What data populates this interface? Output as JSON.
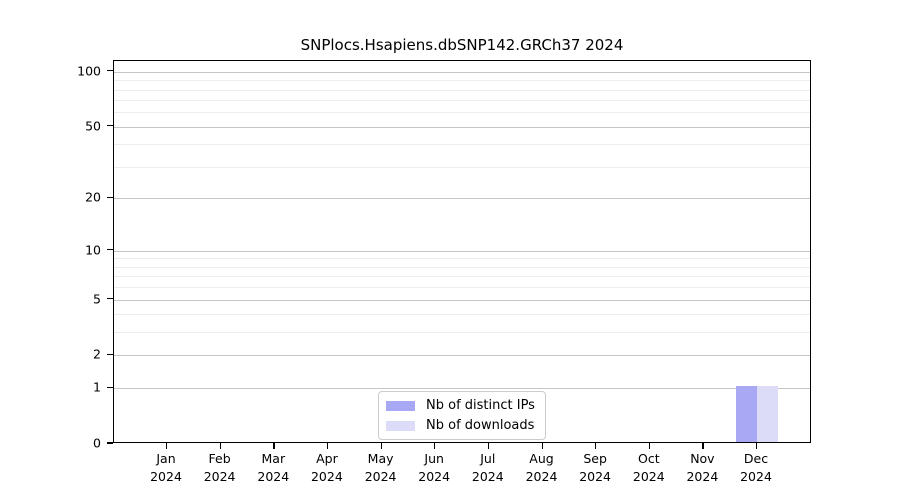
{
  "figure": {
    "background": "#ffffff"
  },
  "chart_data": {
    "type": "bar",
    "title": "SNPlocs.Hsapiens.dbSNP142.GRCh37 2024",
    "x_tick_months": [
      "Jan",
      "Feb",
      "Mar",
      "Apr",
      "May",
      "Jun",
      "Jul",
      "Aug",
      "Sep",
      "Oct",
      "Nov",
      "Dec"
    ],
    "x_tick_year": "2024",
    "series": [
      {
        "name": "Nb of distinct IPs",
        "color": "#a8a8f5",
        "values": [
          0,
          0,
          0,
          0,
          0,
          0,
          0,
          0,
          0,
          0,
          0,
          1
        ]
      },
      {
        "name": "Nb of downloads",
        "color": "#dcdcf8",
        "values": [
          0,
          0,
          0,
          0,
          0,
          0,
          0,
          0,
          0,
          0,
          0,
          1
        ]
      }
    ],
    "y_scale": "log1p",
    "y_major_ticks": [
      0,
      1,
      2,
      5,
      10,
      20,
      50,
      100
    ],
    "y_minor_ticks": [
      3,
      4,
      6,
      7,
      8,
      9,
      30,
      40,
      60,
      70,
      80,
      90
    ],
    "ylim": [
      0,
      115
    ],
    "grid": "horizontal-only",
    "legend_position": "bottom-center",
    "colors": {
      "major_grid": "#c6c6c6",
      "minor_grid": "#ededed",
      "axis": "#000000",
      "text": "#000000"
    }
  }
}
